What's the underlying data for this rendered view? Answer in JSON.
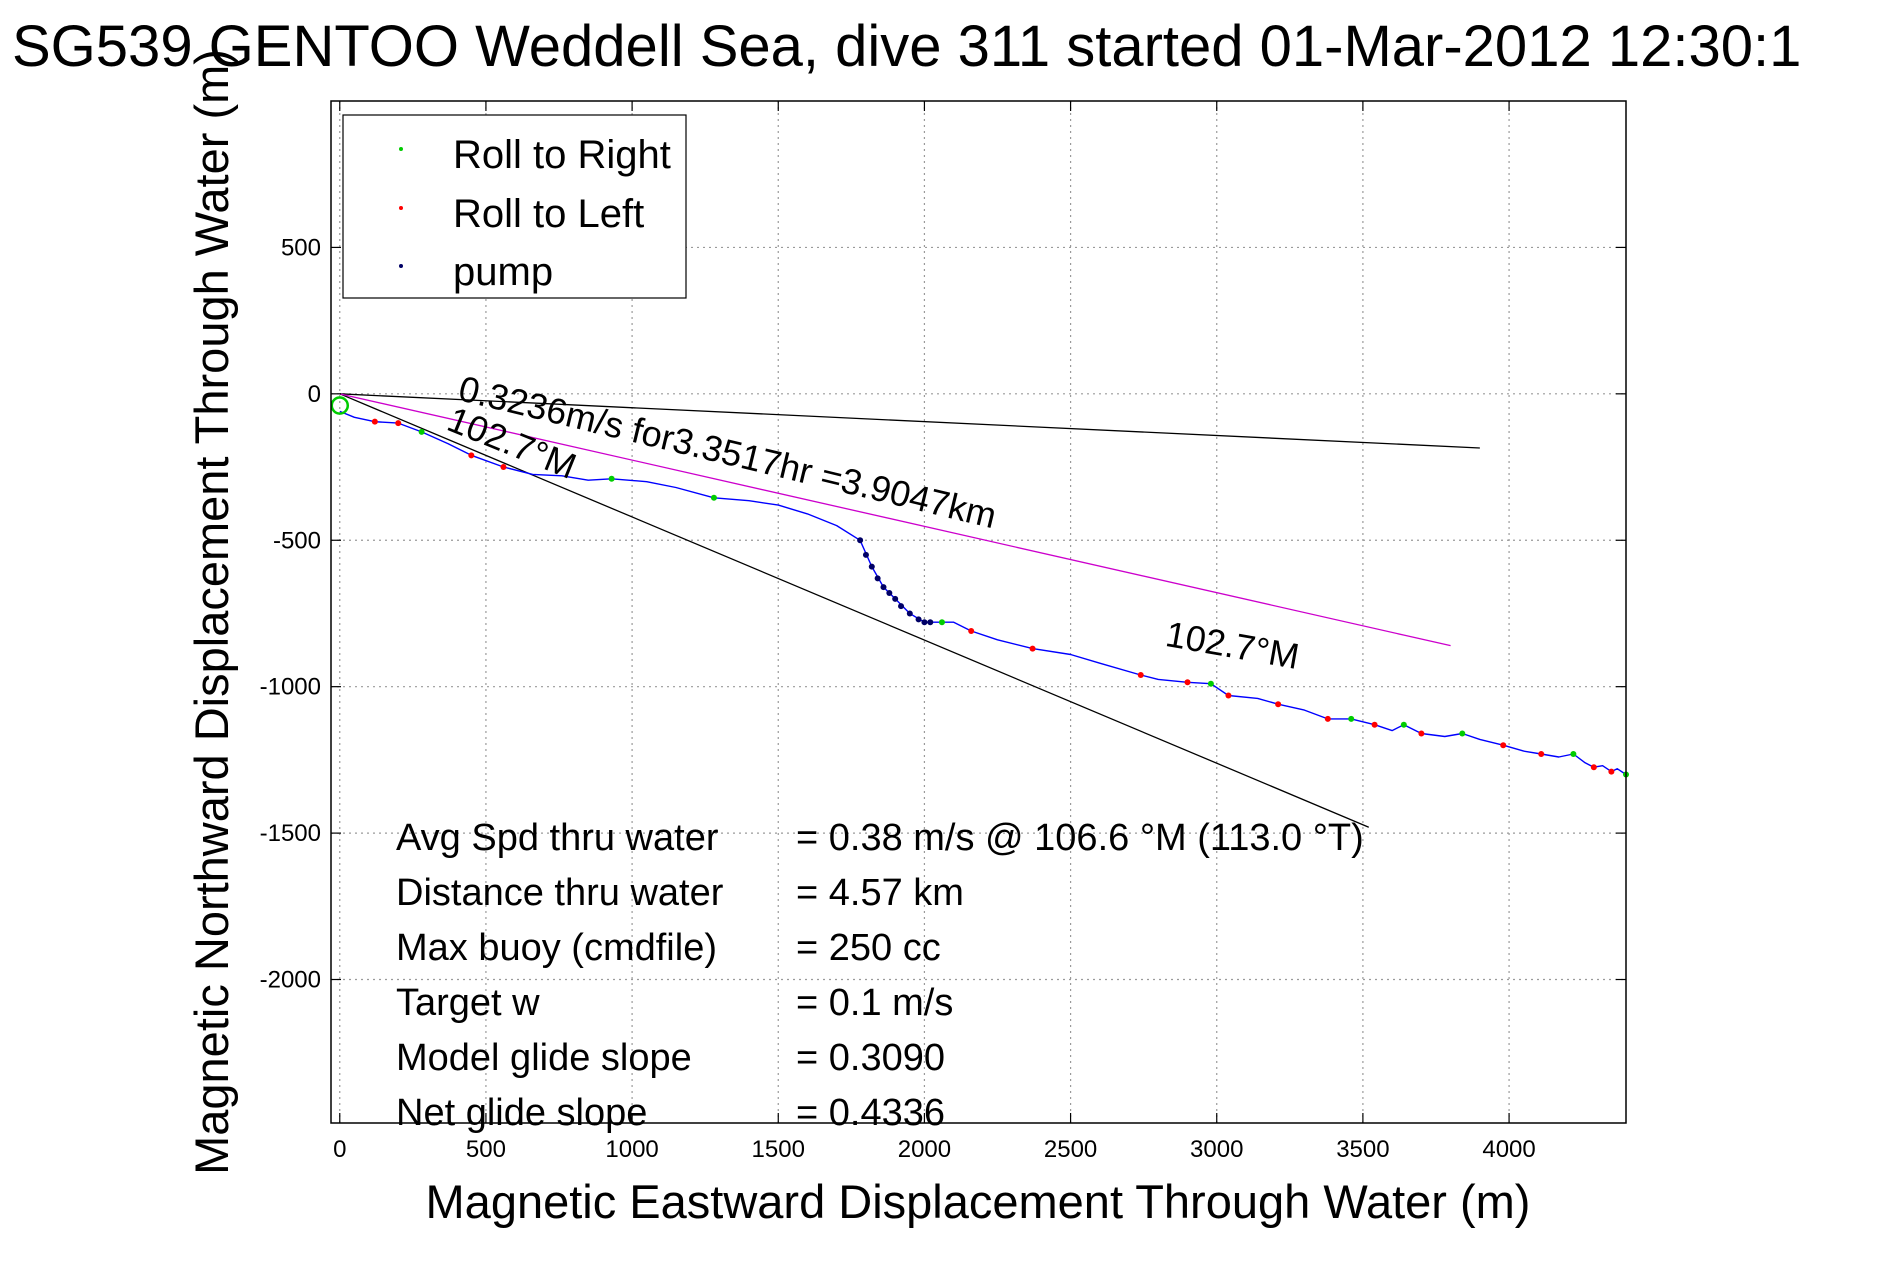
{
  "chart_data": {
    "type": "line",
    "title": "SG539 GENTOO Weddell Sea, dive 311 started 01-Mar-2012 12:30:1",
    "xlabel": "Magnetic Eastward Displacement Through Water (m)",
    "ylabel": "Magnetic Northward Displacement Through Water (m)",
    "xlim": [
      -30,
      4400
    ],
    "ylim": [
      -2490,
      1000
    ],
    "xticks": [
      0,
      500,
      1000,
      1500,
      2000,
      2500,
      3000,
      3500,
      4000
    ],
    "yticks": [
      500,
      0,
      -500,
      -1000,
      -1500,
      -2000
    ],
    "xtick_labels": [
      "0",
      "500",
      "1000",
      "1500",
      "2000",
      "2500",
      "3000",
      "3500",
      "4000"
    ],
    "ytick_labels": [
      "500",
      "0",
      "-500",
      "-1000",
      "-1500",
      "-2000"
    ],
    "grid": true,
    "legend_position": "top-left",
    "legend": [
      {
        "label": "Roll to Right",
        "color": "#00cc00"
      },
      {
        "label": "Roll to Left",
        "color": "#ff0000"
      },
      {
        "label": "pump",
        "color": "#000066"
      }
    ],
    "track": {
      "name": "track",
      "color": "#0000ff",
      "x": [
        0,
        50,
        120,
        200,
        280,
        370,
        450,
        560,
        660,
        760,
        850,
        930,
        1050,
        1150,
        1280,
        1400,
        1500,
        1600,
        1700,
        1780,
        1820,
        1860,
        1900,
        1950,
        2000,
        2060,
        2100,
        2160,
        2250,
        2370,
        2500,
        2600,
        2740,
        2800,
        2900,
        2980,
        3040,
        3140,
        3210,
        3300,
        3380,
        3460,
        3540,
        3600,
        3640,
        3700,
        3780,
        3840,
        3900,
        3980,
        4050,
        4110,
        4170,
        4220,
        4260,
        4290,
        4320,
        4350,
        4370,
        4400
      ],
      "y": [
        -60,
        -80,
        -95,
        -100,
        -130,
        -170,
        -210,
        -250,
        -275,
        -280,
        -295,
        -290,
        -300,
        -320,
        -355,
        -365,
        -380,
        -410,
        -450,
        -500,
        -590,
        -660,
        -700,
        -750,
        -780,
        -780,
        -780,
        -810,
        -840,
        -870,
        -890,
        -920,
        -960,
        -975,
        -985,
        -990,
        -1030,
        -1040,
        -1060,
        -1080,
        -1110,
        -1110,
        -1130,
        -1150,
        -1130,
        -1160,
        -1170,
        -1160,
        -1180,
        -1200,
        -1220,
        -1230,
        -1240,
        -1230,
        -1260,
        -1275,
        -1270,
        -1290,
        -1280,
        -1300
      ]
    },
    "roll_right_points": {
      "x": [
        280,
        930,
        1280,
        2060,
        2980,
        3460,
        3640,
        3840,
        4220,
        4400
      ],
      "y": [
        -130,
        -290,
        -355,
        -780,
        -990,
        -1110,
        -1130,
        -1160,
        -1230,
        -1300
      ]
    },
    "roll_left_points": {
      "x": [
        120,
        200,
        450,
        560,
        2160,
        2370,
        2740,
        2900,
        3040,
        3210,
        3380,
        3540,
        3700,
        3980,
        4110,
        4290,
        4350
      ],
      "y": [
        -95,
        -100,
        -210,
        -250,
        -810,
        -870,
        -960,
        -985,
        -1030,
        -1060,
        -1110,
        -1130,
        -1160,
        -1200,
        -1230,
        -1275,
        -1290
      ]
    },
    "pump_points": {
      "x": [
        1780,
        1800,
        1820,
        1840,
        1860,
        1880,
        1900,
        1920,
        1950,
        1980,
        2000,
        2020
      ],
      "y": [
        -500,
        -550,
        -590,
        -630,
        -660,
        -680,
        -700,
        -725,
        -750,
        -770,
        -780,
        -780
      ]
    },
    "reference_lines": [
      {
        "name": "current",
        "color": "#000000",
        "x": [
          0,
          3900
        ],
        "y": [
          0,
          -185
        ]
      },
      {
        "name": "heading",
        "color": "#000000",
        "x": [
          0,
          3520
        ],
        "y": [
          0,
          -1480
        ]
      },
      {
        "name": "speed",
        "color": "#cc00cc",
        "x": [
          0,
          3800
        ],
        "y": [
          0,
          -860
        ]
      }
    ],
    "annotations": [
      {
        "text": "0.3236m/s for3.3517hr =3.9047km",
        "x": 400,
        "y": -20,
        "angle": 13.5
      },
      {
        "text": "102.7°M",
        "x": 360,
        "y": -120,
        "angle": 22
      },
      {
        "text": "102.7°M",
        "x": 2820,
        "y": -860,
        "angle": 10
      }
    ],
    "start_marker": {
      "x": 0,
      "y": -40,
      "color": "#00cc00"
    },
    "stats": [
      {
        "label": "Avg Spd thru water",
        "value": "=  0.38 m/s @ 106.6 °M (113.0 °T)"
      },
      {
        "label": "Distance thru water",
        "value": "=  4.57 km"
      },
      {
        "label": "Max buoy (cmdfile)",
        "value": "= 250 cc"
      },
      {
        "label": "Target w",
        "value": "= 0.1 m/s"
      },
      {
        "label": "Model glide slope",
        "value": "= 0.3090"
      },
      {
        "label": "Net glide slope",
        "value": "= 0.4336"
      }
    ]
  }
}
